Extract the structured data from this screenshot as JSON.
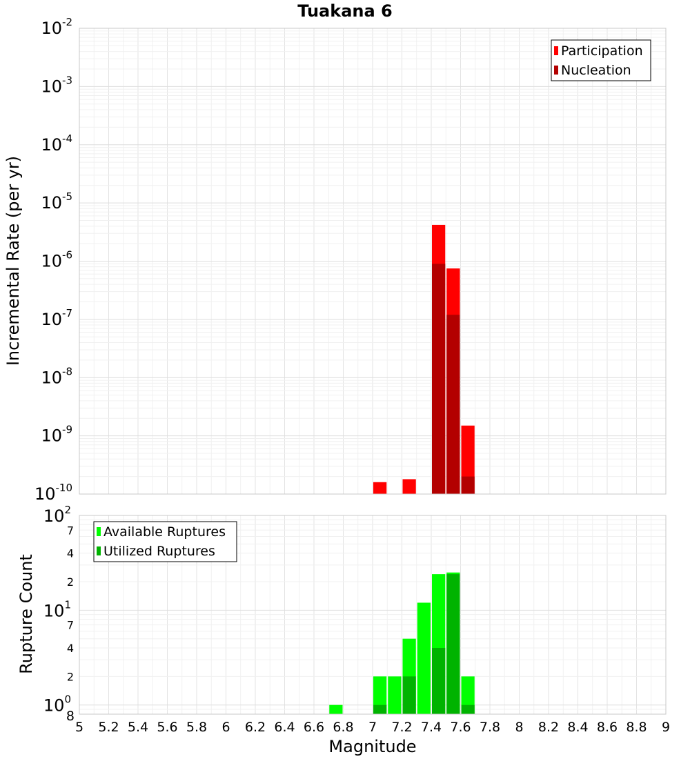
{
  "chart_data": [
    {
      "type": "bar",
      "title": "Tuakana 6",
      "xlabel": "",
      "ylabel": "Incremental Rate (per yr)",
      "yscale": "log",
      "ylim": [
        1e-10,
        0.01
      ],
      "xlim": [
        5,
        9
      ],
      "bin_width": 0.1,
      "legend_position": "top-right",
      "grid": true,
      "y_ticks": [
        "10",
        "10",
        "10",
        "10",
        "10",
        "10",
        "10",
        "10",
        "10"
      ],
      "y_tick_exponents": [
        "-10",
        "-9",
        "-8",
        "-7",
        "-6",
        "-5",
        "-4",
        "-3",
        "-2"
      ],
      "series": [
        {
          "name": "Participation",
          "color": "#ff0000",
          "x": [
            7.05,
            7.25,
            7.45,
            7.55,
            7.65
          ],
          "values": [
            1.6e-10,
            1.8e-10,
            4.2e-06,
            7.5e-07,
            1.5e-09
          ]
        },
        {
          "name": "Nucleation",
          "color": "#b30000",
          "x": [
            7.45,
            7.55,
            7.65
          ],
          "values": [
            9e-07,
            1.2e-07,
            2e-10
          ]
        }
      ]
    },
    {
      "type": "bar",
      "title": "",
      "xlabel": "Magnitude",
      "ylabel": "Rupture Count",
      "yscale": "log",
      "ylim": [
        0.8,
        100
      ],
      "xlim": [
        5,
        9
      ],
      "bin_width": 0.1,
      "legend_position": "top-left",
      "grid": true,
      "x_ticks": [
        "5",
        "5.2",
        "5.4",
        "5.6",
        "5.8",
        "6",
        "6.2",
        "6.4",
        "6.6",
        "6.8",
        "7",
        "7.2",
        "7.4",
        "7.6",
        "7.8",
        "8",
        "8.2",
        "8.4",
        "8.6",
        "8.8",
        "9"
      ],
      "y_major_ticks": [
        "10",
        "10",
        "10"
      ],
      "y_major_exponents": [
        "0",
        "1",
        "2"
      ],
      "y_minor_ticks": [
        "8",
        "2",
        "4",
        "7",
        "2",
        "4",
        "7"
      ],
      "series": [
        {
          "name": "Available Ruptures",
          "color": "#00ff00",
          "x": [
            6.75,
            7.05,
            7.15,
            7.25,
            7.35,
            7.45,
            7.55,
            7.65
          ],
          "values": [
            1,
            2,
            2,
            5,
            12,
            24,
            25,
            2
          ]
        },
        {
          "name": "Utilized Ruptures",
          "color": "#00b300",
          "x": [
            7.05,
            7.25,
            7.45,
            7.55,
            7.65
          ],
          "values": [
            1,
            2,
            4,
            24,
            1
          ]
        }
      ]
    }
  ]
}
